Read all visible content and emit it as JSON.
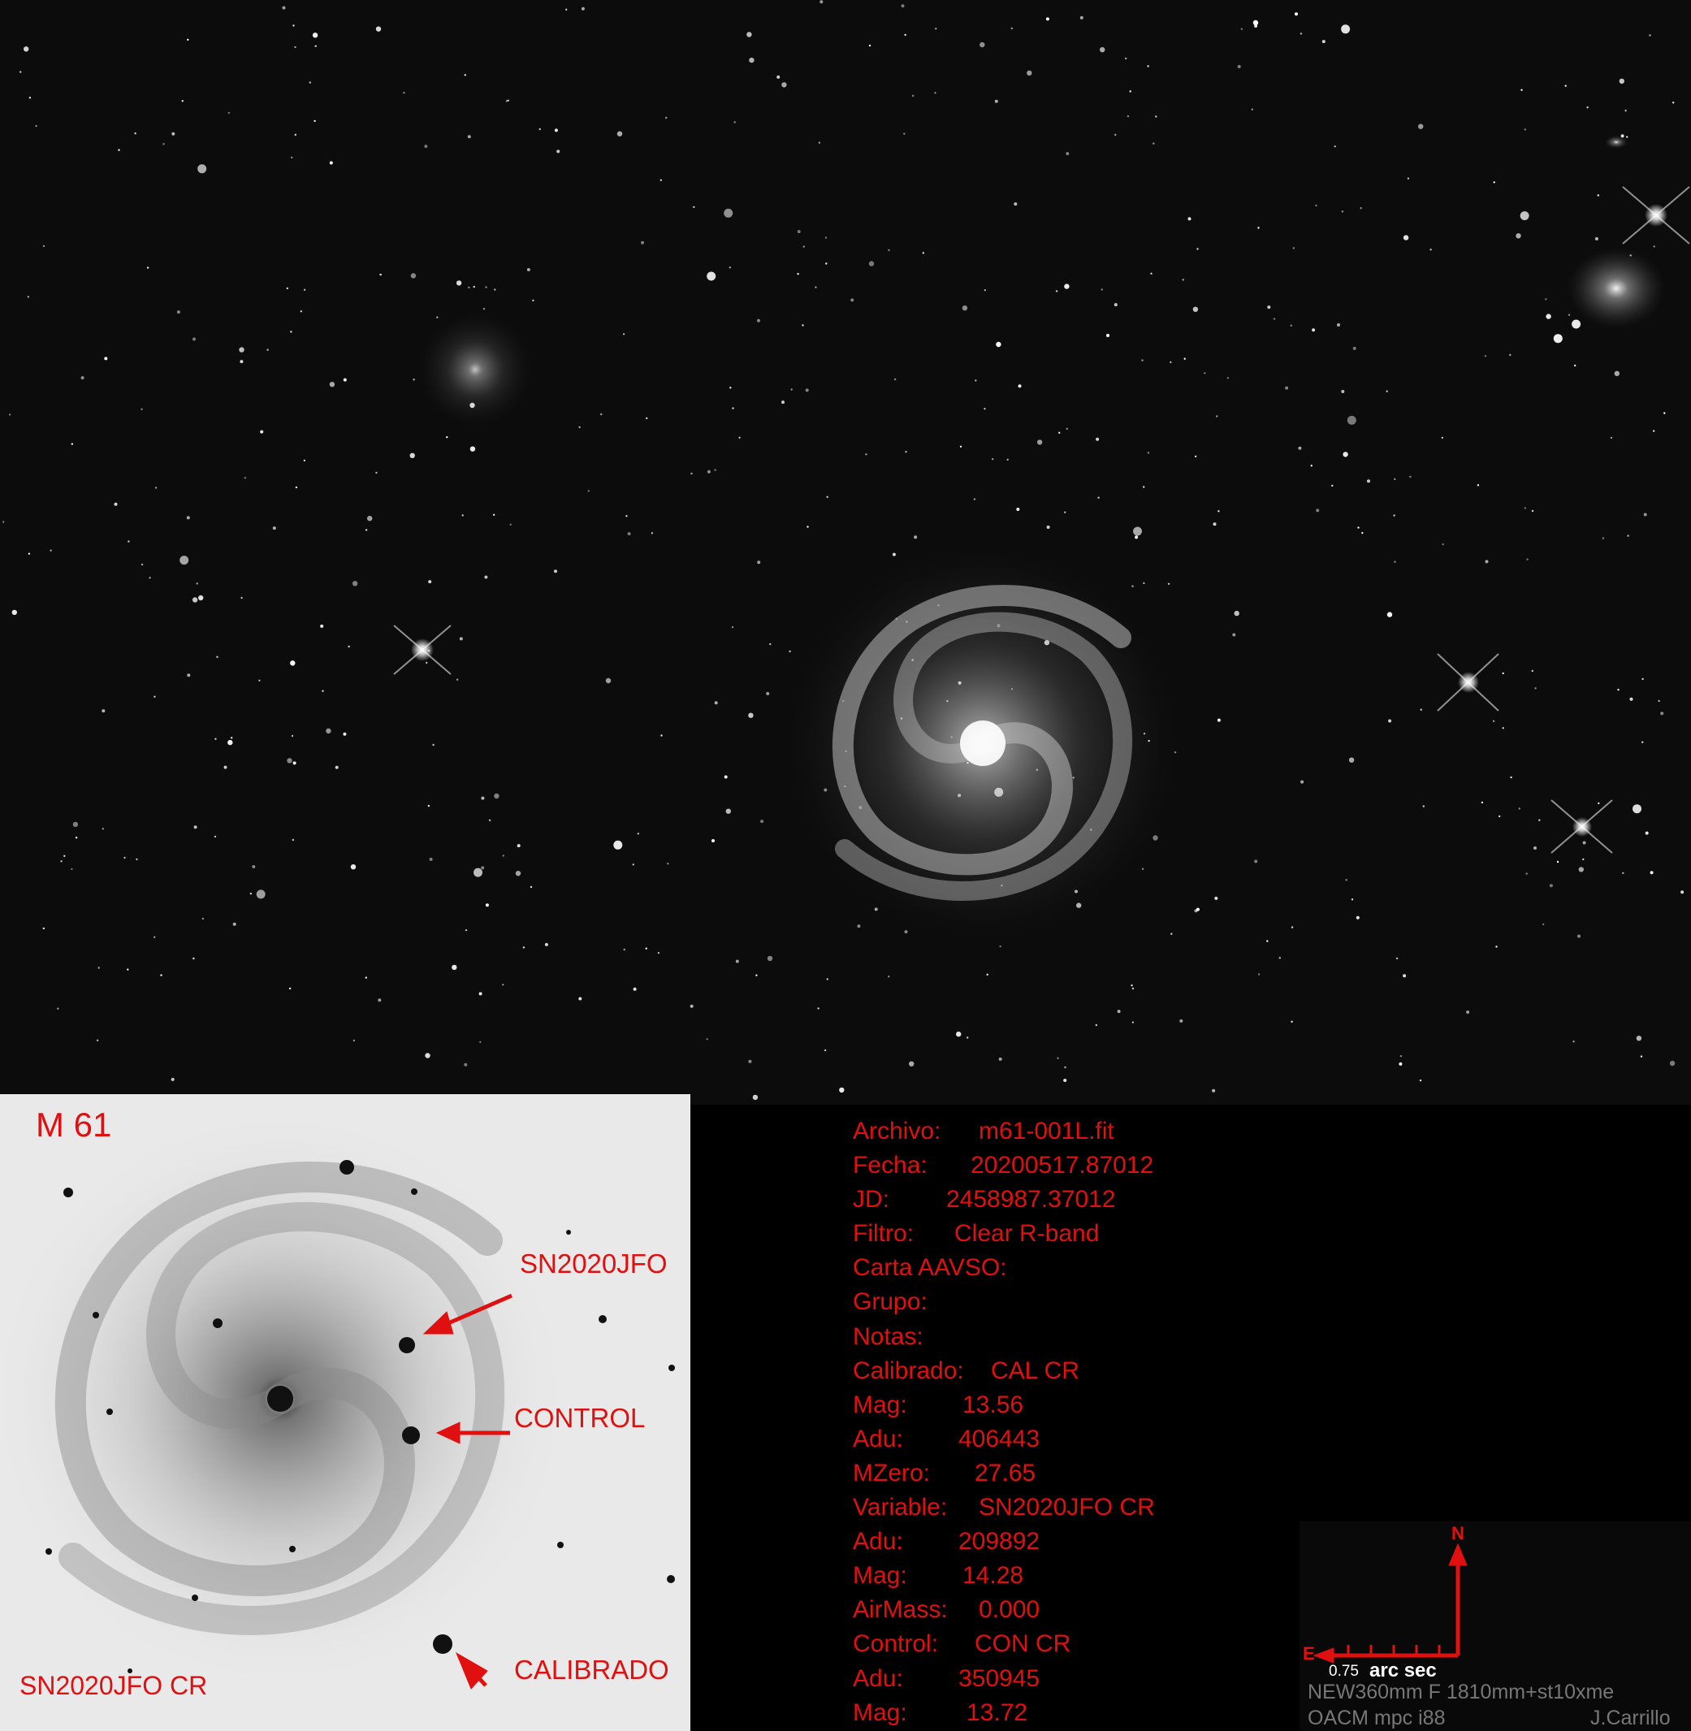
{
  "inset": {
    "title": "M 61",
    "label_sn": "SN2020JFO",
    "label_control": "CONTROL",
    "label_calibrado": "CALIBRADO",
    "bottom_label": "SN2020JFO CR"
  },
  "info": [
    {
      "key": "Archivo:",
      "value": "m61-001L.fit"
    },
    {
      "key": "Fecha:",
      "value": "20200517.87012"
    },
    {
      "key": "JD:",
      "value": "2458987.37012"
    },
    {
      "key": "Filtro:",
      "value": "Clear R-band"
    },
    {
      "key": "Carta AAVSO:",
      "value": ""
    },
    {
      "key": "Grupo:",
      "value": ""
    },
    {
      "key": "Notas:",
      "value": ""
    },
    {
      "key": "Calibrado:",
      "value": "CAL CR"
    },
    {
      "key": "Mag:",
      "value": "13.56"
    },
    {
      "key": "Adu:",
      "value": "406443"
    },
    {
      "key": "MZero:",
      "value": "27.65"
    },
    {
      "key": "Variable:",
      "value": "SN2020JFO CR"
    },
    {
      "key": "Adu:",
      "value": "209892"
    },
    {
      "key": "Mag:",
      "value": "14.28"
    },
    {
      "key": "AirMass:",
      "value": "0.000"
    },
    {
      "key": "Control:",
      "value": "CON CR"
    },
    {
      "key": "Adu:",
      "value": "350945"
    },
    {
      "key": "Mag:",
      "value": "13.72"
    }
  ],
  "scale": {
    "north": "N",
    "east": "E",
    "scale_value": "0.75",
    "scale_unit": "arc sec",
    "instrument": "NEW360mm F 1810mm+st10xme",
    "site": "OACM mpc i88",
    "author": "J.Carrillo"
  },
  "colors": {
    "annotation_red": "#e01010",
    "sky_background": "#0c0c0c",
    "inset_background": "#e9e9e9"
  }
}
